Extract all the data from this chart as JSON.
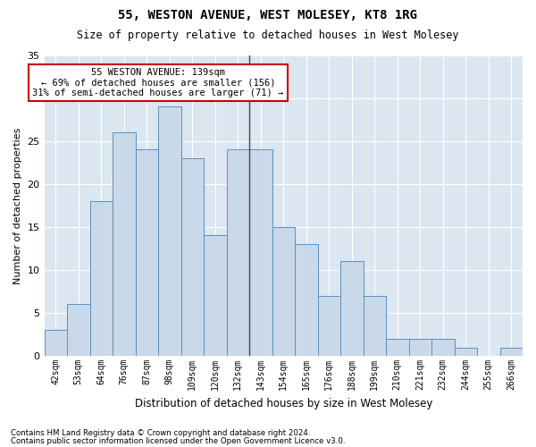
{
  "title": "55, WESTON AVENUE, WEST MOLESEY, KT8 1RG",
  "subtitle": "Size of property relative to detached houses in West Molesey",
  "xlabel": "Distribution of detached houses by size in West Molesey",
  "ylabel": "Number of detached properties",
  "categories": [
    "42sqm",
    "53sqm",
    "64sqm",
    "76sqm",
    "87sqm",
    "98sqm",
    "109sqm",
    "120sqm",
    "132sqm",
    "143sqm",
    "154sqm",
    "165sqm",
    "176sqm",
    "188sqm",
    "199sqm",
    "210sqm",
    "221sqm",
    "232sqm",
    "244sqm",
    "255sqm",
    "266sqm"
  ],
  "values": [
    3,
    6,
    18,
    26,
    24,
    29,
    23,
    14,
    24,
    24,
    15,
    13,
    7,
    11,
    7,
    2,
    2,
    2,
    1,
    0,
    1
  ],
  "bar_color": "#c9d9ea",
  "bar_edge_color": "#5b8fbc",
  "background_color": "#dce6f0",
  "annotation_title": "55 WESTON AVENUE: 139sqm",
  "annotation_line1": "← 69% of detached houses are smaller (156)",
  "annotation_line2": "31% of semi-detached houses are larger (71) →",
  "annotation_box_color": "#cc0000",
  "ylim": [
    0,
    35
  ],
  "yticks": [
    0,
    5,
    10,
    15,
    20,
    25,
    30,
    35
  ],
  "footer1": "Contains HM Land Registry data © Crown copyright and database right 2024.",
  "footer2": "Contains public sector information licensed under the Open Government Licence v3.0."
}
